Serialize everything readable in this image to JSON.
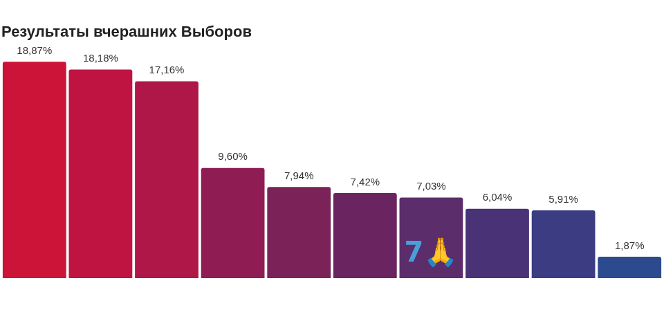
{
  "chart_data": {
    "type": "bar",
    "title": "Результаты вчерашних Выборов",
    "categories": [
      null,
      null,
      null,
      null,
      null,
      null,
      null,
      null,
      null,
      null
    ],
    "values": [
      18.87,
      18.18,
      17.16,
      9.6,
      7.94,
      7.42,
      7.03,
      6.04,
      5.91,
      1.87
    ],
    "value_labels": [
      "18,87%",
      "18,18%",
      "17,16%",
      "9,60%",
      "7,94%",
      "7,42%",
      "7,03%",
      "6,04%",
      "5,91%",
      "1,87%"
    ],
    "colors": [
      "#cc1338",
      "#bf1442",
      "#ae1747",
      "#8f1d53",
      "#7b2259",
      "#6a2561",
      "#5c2d6b",
      "#493276",
      "#3b3c82",
      "#2b4b8e"
    ],
    "ylim": [
      0,
      20
    ],
    "data_labels": true,
    "tick_labels": false,
    "grid": false,
    "annotations": [
      {
        "text": "7🙏",
        "index": 6
      }
    ]
  }
}
